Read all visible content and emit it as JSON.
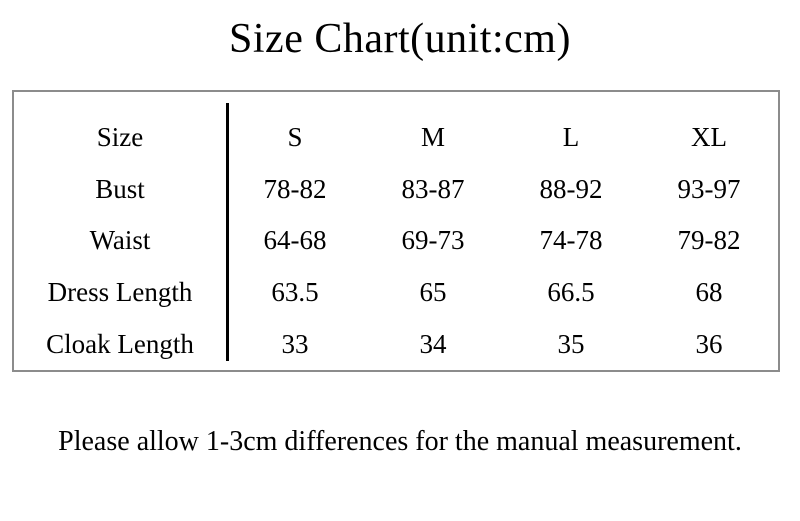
{
  "title": "Size Chart(unit:cm)",
  "footer_note": "Please allow 1-3cm differences for the manual measurement.",
  "colors": {
    "background": "#ffffff",
    "text": "#000000",
    "table_border": "#8c8c8c",
    "column_divider": "#000000"
  },
  "chart_data": {
    "type": "table",
    "title": "Size Chart(unit:cm)",
    "unit": "cm",
    "columns": [
      "Size",
      "S",
      "M",
      "L",
      "XL"
    ],
    "rows": [
      [
        "Bust",
        "78-82",
        "83-87",
        "88-92",
        "93-97"
      ],
      [
        "Waist",
        "64-68",
        "69-73",
        "74-78",
        "79-82"
      ],
      [
        "Dress Length",
        "63.5",
        "65",
        "66.5",
        "68"
      ],
      [
        "Cloak Length",
        "33",
        "34",
        "35",
        "36"
      ]
    ],
    "note": "Please allow 1-3cm differences for the manual measurement.",
    "layout": {
      "divider_after_column": 0,
      "grid": "off",
      "border": "outer-only"
    }
  }
}
